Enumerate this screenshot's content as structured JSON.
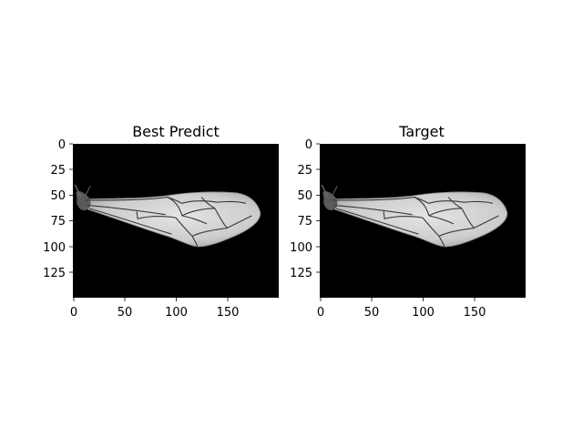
{
  "panels": [
    {
      "title": "Best Predict",
      "x_ticks": [
        "0",
        "50",
        "100",
        "150"
      ],
      "y_ticks": [
        "0",
        "25",
        "50",
        "75",
        "100",
        "125"
      ]
    },
    {
      "title": "Target",
      "x_ticks": [
        "0",
        "50",
        "100",
        "150"
      ],
      "y_ticks": [
        "0",
        "25",
        "50",
        "75",
        "100",
        "125"
      ]
    }
  ],
  "colors": {
    "background": "#ffffff",
    "image_background": "#000000",
    "wing_fill": "#cfcfcf",
    "vein": "#3a3a3a"
  }
}
